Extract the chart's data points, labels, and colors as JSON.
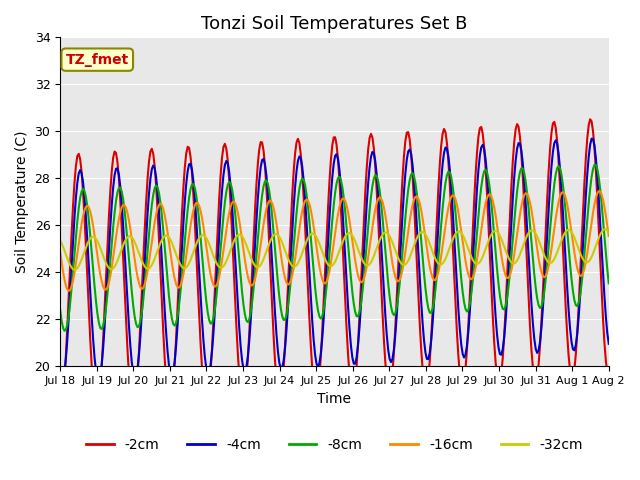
{
  "title": "Tonzi Soil Temperatures Set B",
  "xlabel": "Time",
  "ylabel": "Soil Temperature (C)",
  "ylim": [
    20,
    34
  ],
  "annotation": "TZ_fmet",
  "legend_labels": [
    "-2cm",
    "-4cm",
    "-8cm",
    "-16cm",
    "-32cm"
  ],
  "line_colors": [
    "#dd0000",
    "#0000cc",
    "#00aa00",
    "#ff8800",
    "#cccc00"
  ],
  "line_widths": [
    1.5,
    1.5,
    1.5,
    1.5,
    1.5
  ],
  "bg_color": "#e8e8e8",
  "fig_bg": "#ffffff",
  "tick_labels": [
    "Jul 18",
    "Jul 19",
    "Jul 20",
    "Jul 21",
    "Jul 22",
    "Jul 23",
    "Jul 24",
    "Jul 25",
    "Jul 26",
    "Jul 27",
    "Jul 28",
    "Jul 29",
    "Jul 30",
    "Jul 31",
    "Aug 1",
    "Aug 2"
  ],
  "n_points": 384
}
